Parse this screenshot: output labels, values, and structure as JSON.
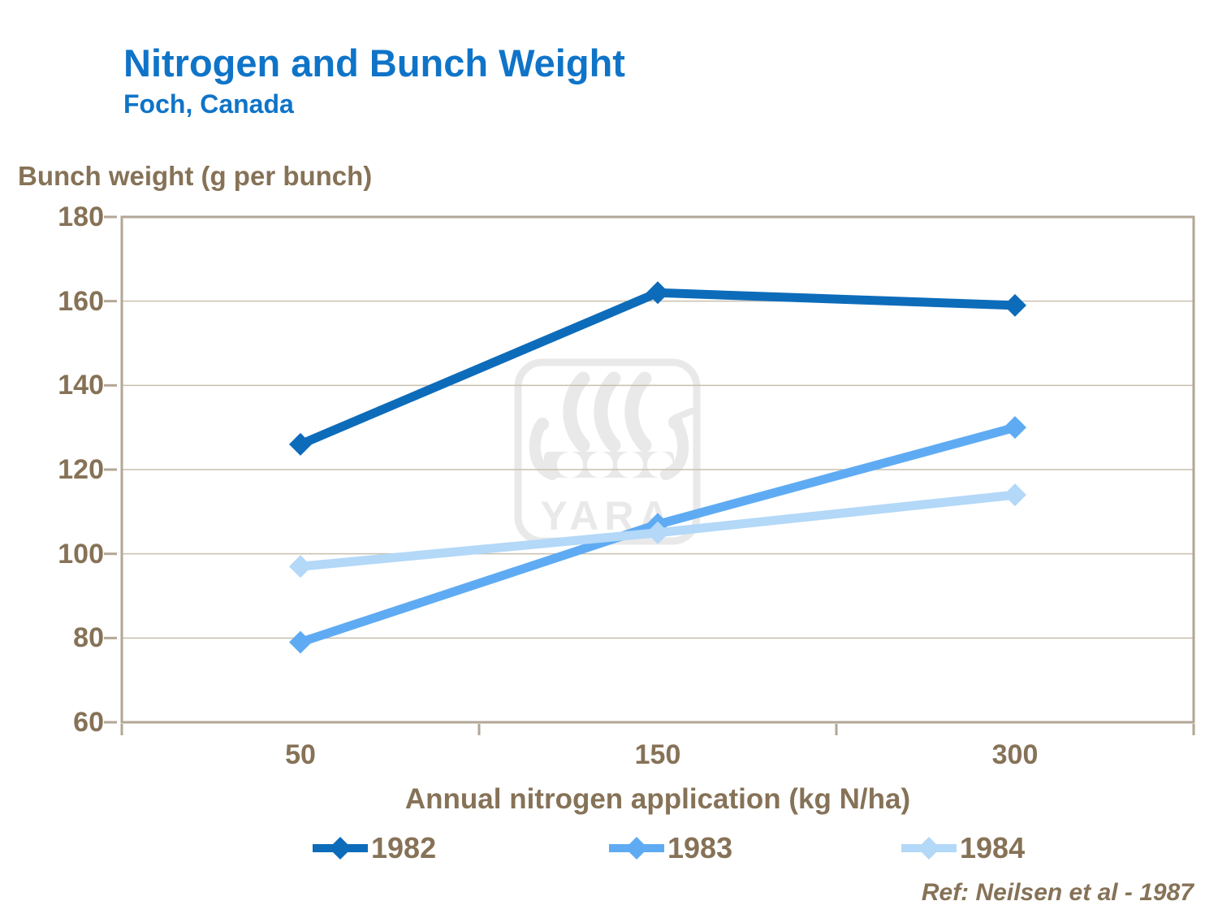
{
  "header": {
    "title": "Nitrogen and Bunch Weight",
    "subtitle": "Foch, Canada"
  },
  "chart_data": {
    "type": "line",
    "title": "Nitrogen and Bunch Weight",
    "subtitle": "Foch, Canada",
    "xlabel": "Annual nitrogen application (kg N/ha)",
    "ylabel": "Bunch weight (g per bunch)",
    "categories": [
      "50",
      "150",
      "300"
    ],
    "series": [
      {
        "name": "1982",
        "color": "#0d6cba",
        "values": [
          126,
          162,
          159
        ]
      },
      {
        "name": "1983",
        "color": "#5fabf3",
        "values": [
          79,
          107,
          130
        ]
      },
      {
        "name": "1984",
        "color": "#b3d8f8",
        "values": [
          97,
          105,
          114
        ]
      }
    ],
    "ylim": [
      60,
      180
    ],
    "yticks": [
      60,
      80,
      100,
      120,
      140,
      160,
      180
    ],
    "grid": true,
    "legend_position": "bottom",
    "marker": "diamond"
  },
  "watermark": {
    "label": "YARA"
  },
  "footer": {
    "reference": "Ref: Neilsen et al - 1987"
  },
  "colors": {
    "title": "#0f74c8",
    "axis_text": "#867257",
    "gridline": "#c9bfae",
    "plot_border": "#b2a696",
    "watermark": "#e9e9e9"
  }
}
